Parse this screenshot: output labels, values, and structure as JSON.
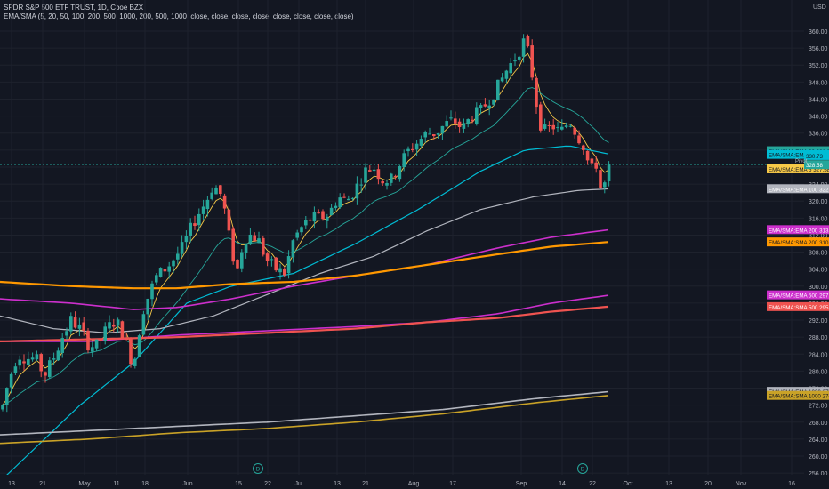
{
  "header": {
    "title": "SPDR S&P 500 ETF TRUST, 1D, Cboe BZX",
    "indicator": "EMA/SMA (5, 20, 50, 100, 200, 500, 1000, 200, 500, 1000, close, close, close, close, close, close, close, close)"
  },
  "currency": "USD",
  "colors": {
    "background": "#131722",
    "grid": "#1e222d",
    "up": "#26a69a",
    "down": "#ef5350",
    "text": "#b2b5be"
  },
  "chart_data": {
    "type": "candlestick",
    "ylim": [
      256,
      364
    ],
    "y_ticks": [
      256,
      260,
      264,
      268,
      272,
      276,
      280,
      284,
      288,
      292,
      296,
      300,
      304,
      308,
      312,
      316,
      320,
      324,
      328,
      332,
      336,
      340,
      344,
      348,
      352,
      356,
      360
    ],
    "x_ticks": [
      "13",
      "21",
      "May",
      "11",
      "18",
      "Jun",
      "15",
      "22",
      "Jul",
      "13",
      "21",
      "Aug",
      "17",
      "Sep",
      "14",
      "22",
      "Oct",
      "13",
      "20",
      "Nov",
      "16"
    ],
    "candles_ohlc_approx_anchors": [
      {
        "x": "Apr 13",
        "close": 276
      },
      {
        "x": "May 1",
        "close": 283
      },
      {
        "x": "May 13",
        "close": 284
      },
      {
        "x": "Jun 8",
        "close": 323
      },
      {
        "x": "Jun 11",
        "close": 300
      },
      {
        "x": "Jun 26",
        "close": 300
      },
      {
        "x": "Jul 6",
        "close": 317
      },
      {
        "x": "Jul 21",
        "close": 325
      },
      {
        "x": "Aug 3",
        "close": 329
      },
      {
        "x": "Aug 18",
        "close": 339
      },
      {
        "x": "Sep 2",
        "close": 358
      },
      {
        "x": "Sep 3",
        "close": 344
      },
      {
        "x": "Sep 8",
        "close": 333
      },
      {
        "x": "Sep 23",
        "close": 322
      },
      {
        "x": "Sep 25",
        "close": 328.58
      }
    ],
    "events": [
      {
        "x": "Jun 19",
        "label": "D"
      },
      {
        "x": "Sep 18",
        "label": "D"
      }
    ],
    "series": [
      {
        "name": "EMA/SMA:EMA 5",
        "last": 327.58,
        "color": "#f7c948"
      },
      {
        "name": "EMA/SMA:EMA 20",
        "last": 331.85,
        "color": "#26a69a"
      },
      {
        "name": "EMA/SMA:EMA 50",
        "last": 331.0,
        "color": "#00bcd4"
      },
      {
        "name": "EMA/SMA:EMA 100",
        "last": 322.91,
        "color": "#b2b5be"
      },
      {
        "name": "EMA/SMA:EMA 200",
        "last": 313.28,
        "color": "#cc2fcc"
      },
      {
        "name": "EMA/SMA:SMA 200",
        "last": 310.39,
        "color": "#ff9800"
      },
      {
        "name": "EMA/SMA:EMA 500",
        "last": 297.94,
        "color": "#cc2fcc"
      },
      {
        "name": "EMA/SMA:SMA 500",
        "last": 295.18,
        "color": "#ef5350"
      },
      {
        "name": "EMA/SMA:EMA 1000",
        "last": 275.24,
        "color": "#b2b5be"
      },
      {
        "name": "EMA/SMA:SMA 1000",
        "last": 274.29,
        "color": "#c9a227"
      }
    ],
    "price_labels": {
      "last_close": "328.58",
      "other": "330.73",
      "pivot_tag": "Pivot"
    }
  }
}
